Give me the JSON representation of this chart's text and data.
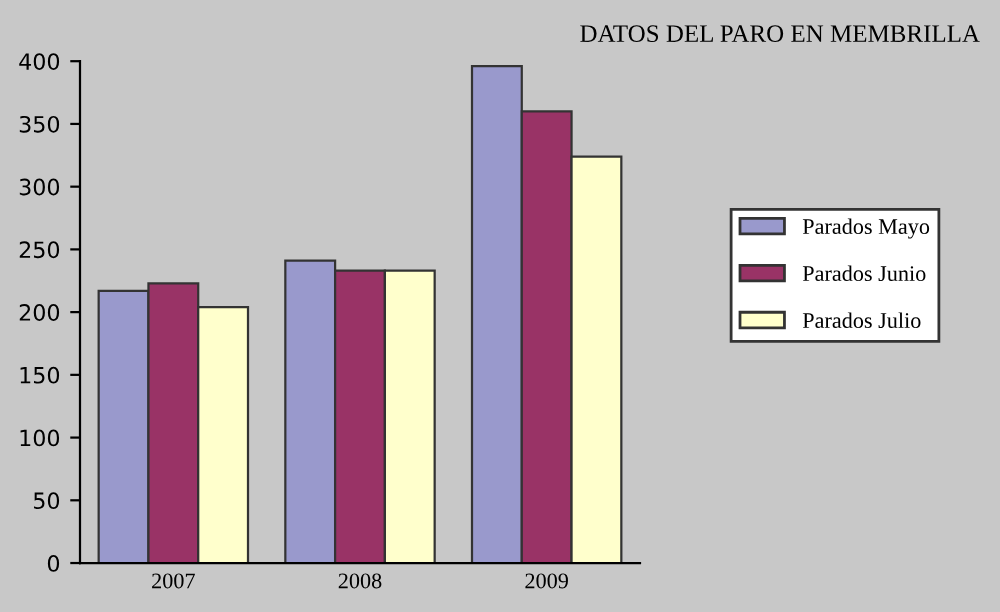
{
  "chart_data": {
    "type": "bar",
    "title": "DATOS DEL PARO EN MEMBRILLA",
    "categories": [
      "2007",
      "2008",
      "2009"
    ],
    "series": [
      {
        "name": "Parados Mayo",
        "color": "#9999cc",
        "values": [
          217,
          241,
          396
        ]
      },
      {
        "name": "Parados Junio",
        "color": "#993366",
        "values": [
          223,
          233,
          360
        ]
      },
      {
        "name": "Parados Julio",
        "color": "#ffffcc",
        "values": [
          204,
          233,
          324
        ]
      }
    ],
    "ylim": [
      0,
      400
    ],
    "yticks": [
      0,
      50,
      100,
      150,
      200,
      250,
      300,
      350,
      400
    ],
    "grid": false,
    "legend": "right"
  }
}
